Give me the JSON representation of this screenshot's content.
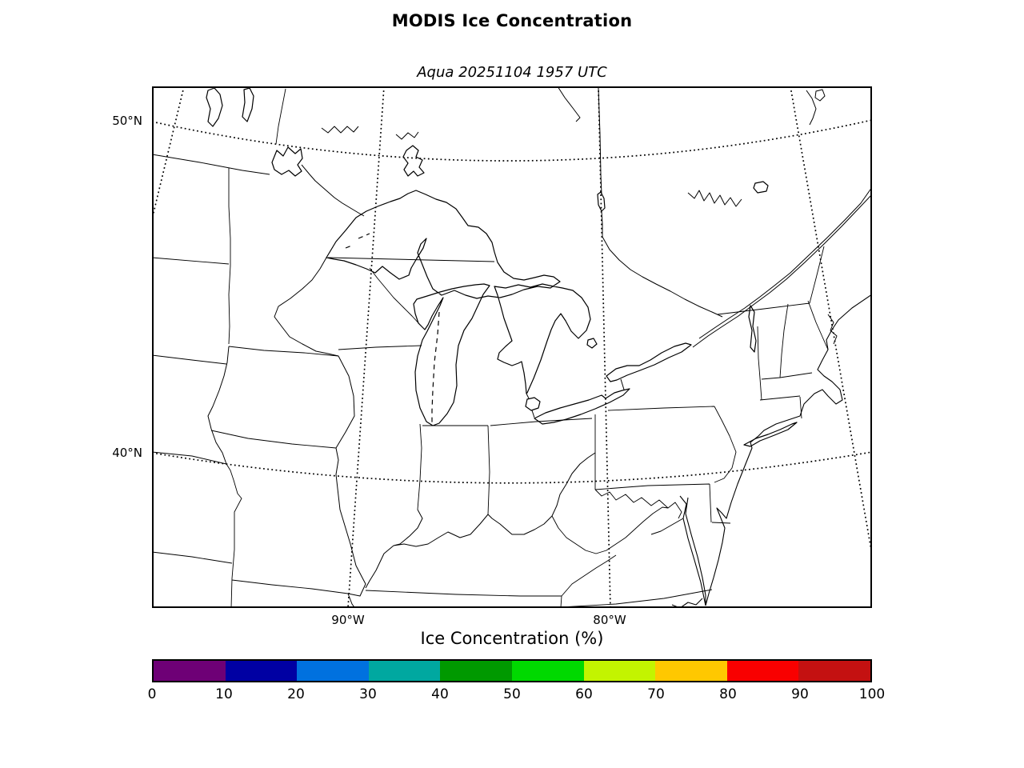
{
  "title": "MODIS Ice Concentration",
  "subtitle": "Aqua 20251104 1957 UTC",
  "map": {
    "lat_labels": {
      "lat50": "50°N",
      "lat40": "40°N"
    },
    "lon_labels": {
      "lon90": "90°W",
      "lon80": "80°W"
    },
    "region": "Great Lakes / Northeastern North America coastline and state borders",
    "features": [
      "Lake Superior",
      "Lake Michigan",
      "Lake Huron",
      "Lake St. Clair",
      "Lake Erie",
      "Lake Ontario",
      "Lake Nipigon",
      "Lake of the Woods",
      "Lake Champlain",
      "St. Lawrence River",
      "Ottawa River",
      "Mississippi River",
      "Ohio River",
      "Chesapeake Bay",
      "Atlantic coast"
    ]
  },
  "colorbar": {
    "label": "Ice Concentration (%)",
    "ticks": [
      "0",
      "10",
      "20",
      "30",
      "40",
      "50",
      "60",
      "70",
      "80",
      "90",
      "100"
    ],
    "colors": [
      "#6E0076",
      "#0000A3",
      "#0071DF",
      "#00A8A0",
      "#009900",
      "#00D900",
      "#C3F400",
      "#FFC800",
      "#F90000",
      "#C41111"
    ]
  },
  "frame_color": "#000000",
  "background_color": "#ffffff"
}
